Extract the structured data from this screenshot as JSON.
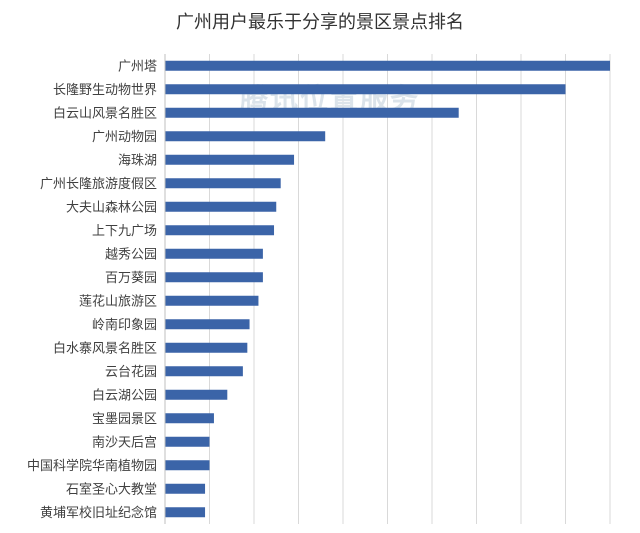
{
  "chart_data": {
    "type": "bar",
    "orientation": "horizontal",
    "title": "广州用户最乐于分享的景区景点排名",
    "categories": [
      "广州塔",
      "长隆野生动物世界",
      "白云山风景名胜区",
      "广州动物园",
      "海珠湖",
      "广州长隆旅游度假区",
      "大夫山森林公园",
      "上下九广场",
      "越秀公园",
      "百万葵园",
      "莲花山旅游区",
      "岭南印象园",
      "白水寨风景名胜区",
      "云台花园",
      "白云湖公园",
      "宝墨园景区",
      "南沙天后宫",
      "中国科学院华南植物园",
      "石室圣心大教堂",
      "黄埔军校旧址纪念馆"
    ],
    "values": [
      100,
      90,
      66,
      36,
      29,
      26,
      25,
      24.5,
      22,
      22,
      21,
      19,
      18.5,
      17.5,
      14,
      11,
      10,
      10,
      9,
      9
    ],
    "xlim": [
      0,
      100
    ],
    "grid": true,
    "bar_color": "#3b64a8",
    "watermark": "腾讯位置服务"
  }
}
